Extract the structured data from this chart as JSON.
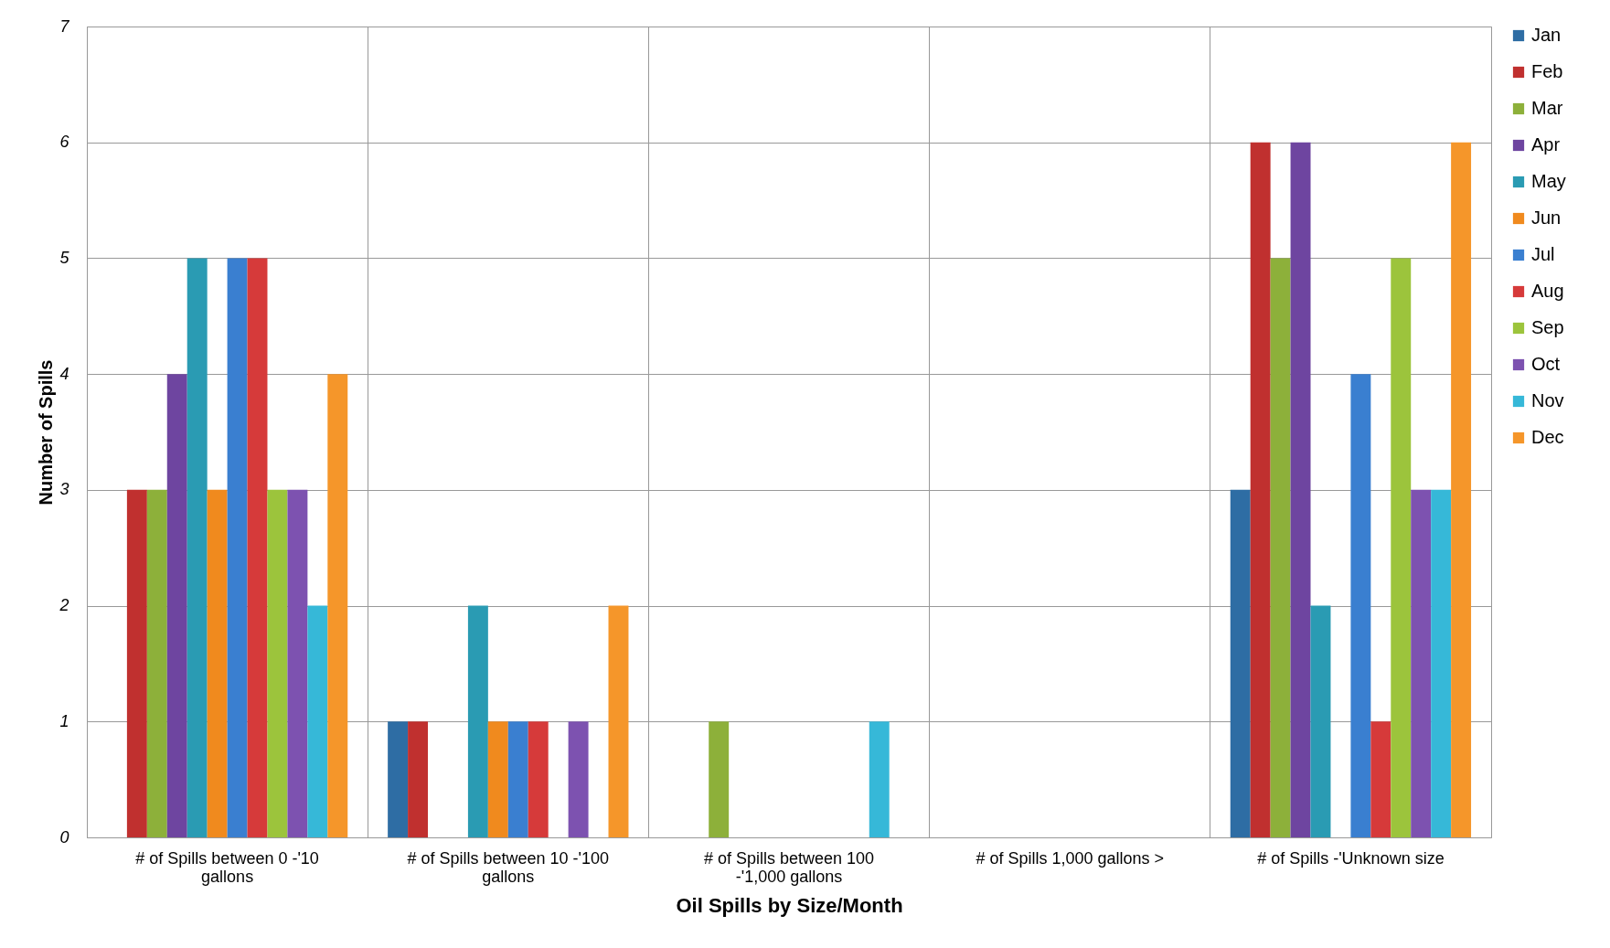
{
  "chart_data": {
    "type": "bar",
    "xlabel": "Oil Spills by Size/Month",
    "ylabel": "Number of Spills",
    "categories": [
      "# of Spills between 0 -'10 gallons",
      "# of Spills between 10 -'100 gallons",
      "# of Spills between 100 -'1,000 gallons",
      "# of Spills 1,000 gallons >",
      "# of Spills -'Unknown size"
    ],
    "series": [
      {
        "name": "Jan",
        "color": "#2e6da4",
        "values": [
          0,
          1,
          0,
          0,
          3
        ]
      },
      {
        "name": "Feb",
        "color": "#c0302f",
        "values": [
          3,
          1,
          0,
          0,
          6
        ]
      },
      {
        "name": "Mar",
        "color": "#8db03a",
        "values": [
          3,
          0,
          1,
          0,
          5
        ]
      },
      {
        "name": "Apr",
        "color": "#6e45a0",
        "values": [
          4,
          0,
          0,
          0,
          6
        ]
      },
      {
        "name": "May",
        "color": "#2a9bb3",
        "values": [
          5,
          2,
          0,
          0,
          2
        ]
      },
      {
        "name": "Jun",
        "color": "#f08a1e",
        "values": [
          3,
          1,
          0,
          0,
          0
        ]
      },
      {
        "name": "Jul",
        "color": "#3a7fd0",
        "values": [
          5,
          1,
          0,
          0,
          4
        ]
      },
      {
        "name": "Aug",
        "color": "#d63a3a",
        "values": [
          5,
          1,
          0,
          0,
          1
        ]
      },
      {
        "name": "Sep",
        "color": "#9cc43c",
        "values": [
          3,
          0,
          0,
          0,
          5
        ]
      },
      {
        "name": "Oct",
        "color": "#7d52b0",
        "values": [
          3,
          1,
          0,
          0,
          3
        ]
      },
      {
        "name": "Nov",
        "color": "#36b8d8",
        "values": [
          2,
          0,
          1,
          0,
          3
        ]
      },
      {
        "name": "Dec",
        "color": "#f5962a",
        "values": [
          4,
          2,
          0,
          0,
          6
        ]
      }
    ],
    "ylim": [
      0,
      7
    ],
    "yticks": [
      0,
      1,
      2,
      3,
      4,
      5,
      6,
      7
    ],
    "grid": true,
    "legend": "right"
  }
}
